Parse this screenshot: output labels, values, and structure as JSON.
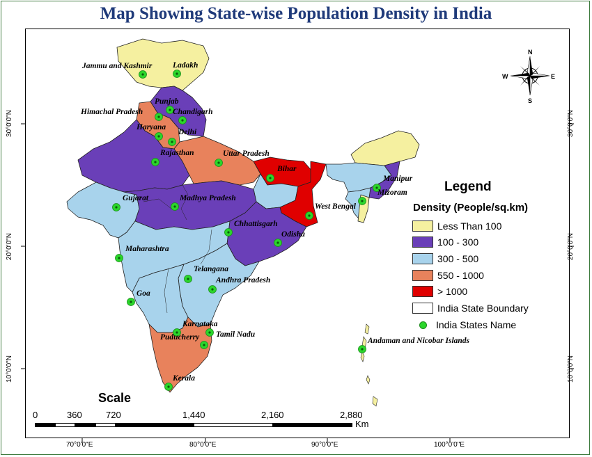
{
  "title": "Map Showing State-wise Population Density in India",
  "colors": {
    "less_than_100": "#f5f0a0",
    "d100_300": "#6a3fb8",
    "d300_500": "#a8d3ec",
    "d550_1000": "#e8825c",
    "gt_1000": "#e00000",
    "marker": "#2bd62b"
  },
  "compass": {
    "n": "N",
    "s": "S",
    "e": "E",
    "w": "W"
  },
  "legend": {
    "title": "Legend",
    "subtitle": "Density (People/sq.km)",
    "items": [
      {
        "label": "Less Than 100",
        "color": "#f5f0a0"
      },
      {
        "label": "100 - 300",
        "color": "#6a3fb8"
      },
      {
        "label": "300 - 500",
        "color": "#a8d3ec"
      },
      {
        "label": "550 - 1000",
        "color": "#e8825c"
      },
      {
        "label": "> 1000",
        "color": "#e00000"
      },
      {
        "label": "India State Boundary",
        "color": "#ffffff"
      },
      {
        "label": "India States Name",
        "color": "#2bd62b"
      }
    ]
  },
  "scale": {
    "title": "Scale",
    "ticks": [
      "0",
      "360",
      "720",
      "1,440",
      "2,160",
      "2,880"
    ],
    "unit": "Km"
  },
  "axes": {
    "left": [
      "30°0'0\"N",
      "20°0'0\"N",
      "10°0'0\"N"
    ],
    "right": [
      "30°0'0\"N",
      "20°0'0\"N",
      "10°0'0\"N"
    ],
    "bottom": [
      "70°0'0\"E",
      "80°0'0\"E",
      "90°0'0\"E",
      "100°0'0\"E"
    ]
  },
  "states": [
    {
      "name": "Jammu and Kashmir",
      "density": "Less Than 100"
    },
    {
      "name": "Ladakh",
      "density": "Less Than 100"
    },
    {
      "name": "Punjab",
      "density": "550 - 1000"
    },
    {
      "name": "Himachal Pradesh",
      "density": "100 - 300"
    },
    {
      "name": "Chandigarh",
      "density": "> 1000"
    },
    {
      "name": "Haryana",
      "density": "550 - 1000"
    },
    {
      "name": "Delhi",
      "density": "> 1000"
    },
    {
      "name": "Rajasthan",
      "density": "100 - 300"
    },
    {
      "name": "Uttar Pradesh",
      "density": "550 - 1000"
    },
    {
      "name": "Bihar",
      "density": "> 1000"
    },
    {
      "name": "Manipur",
      "density": "100 - 300"
    },
    {
      "name": "Mizoram",
      "density": "Less Than 100"
    },
    {
      "name": "Gujarat",
      "density": "300 - 500"
    },
    {
      "name": "Madhya Pradesh",
      "density": "100 - 300"
    },
    {
      "name": "West Bengal",
      "density": "> 1000"
    },
    {
      "name": "Chhattisgarh",
      "density": "100 - 300"
    },
    {
      "name": "Odisha",
      "density": "100 - 300"
    },
    {
      "name": "Maharashtra",
      "density": "300 - 500"
    },
    {
      "name": "Telangana",
      "density": "300 - 500"
    },
    {
      "name": "Andhra Pradesh",
      "density": "300 - 500"
    },
    {
      "name": "Goa",
      "density": "300 - 500"
    },
    {
      "name": "Karnataka",
      "density": "300 - 500"
    },
    {
      "name": "Puducherry",
      "density": "> 1000"
    },
    {
      "name": "Tamil Nadu",
      "density": "550 - 1000"
    },
    {
      "name": "Kerala",
      "density": "550 - 1000"
    },
    {
      "name": "Andaman and Nicobar Islands",
      "density": "Less Than 100"
    }
  ]
}
